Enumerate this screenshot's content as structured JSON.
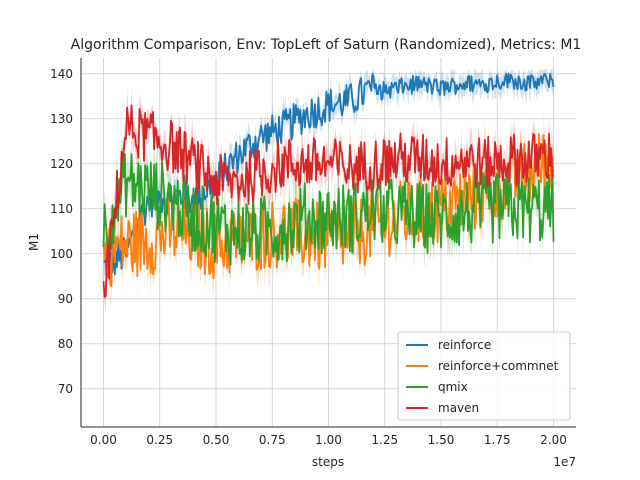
{
  "chart_data": {
    "type": "line",
    "title": "Algorithm Comparison, Env: TopLeft of Saturn (Randomized), Metrics: M1",
    "xlabel": "steps",
    "ylabel": "M1",
    "x_offset_label": "1e7",
    "xlim": [
      -0.1,
      2.1
    ],
    "ylim": [
      61.5,
      143.5
    ],
    "x_scale_note": "x values in units of 1e7 steps",
    "x_ticks": [
      "0.00",
      "0.25",
      "0.50",
      "0.75",
      "1.00",
      "1.25",
      "1.50",
      "1.75",
      "2.00"
    ],
    "y_ticks": [
      "70",
      "80",
      "90",
      "100",
      "110",
      "120",
      "130",
      "140"
    ],
    "grid": true,
    "legend_position": "lower-right",
    "x": [
      0.0,
      0.1,
      0.2,
      0.3,
      0.4,
      0.5,
      0.6,
      0.7,
      0.8,
      0.9,
      1.0,
      1.1,
      1.2,
      1.3,
      1.4,
      1.5,
      1.6,
      1.7,
      1.8,
      1.9,
      2.0
    ],
    "series": [
      {
        "name": "reinforce",
        "color": "#1f77b4",
        "values": [
          97,
          100,
          112,
          113,
          112,
          116,
          122,
          126,
          128,
          131,
          133,
          134,
          137,
          138,
          139,
          138,
          139,
          139,
          140,
          139,
          140
        ],
        "band": 4
      },
      {
        "name": "reinforce+commnet",
        "color": "#ff7f0e",
        "values": [
          100,
          102,
          103,
          105,
          104,
          102,
          103,
          104,
          105,
          104,
          103,
          104,
          106,
          108,
          109,
          110,
          112,
          113,
          116,
          118,
          122
        ],
        "band": 8
      },
      {
        "name": "qmix",
        "color": "#2ca02c",
        "values": [
          105,
          116,
          114,
          112,
          108,
          106,
          105,
          105,
          106,
          108,
          108,
          108,
          110,
          109,
          108,
          108,
          109,
          110,
          110,
          110,
          110
        ],
        "band": 8
      },
      {
        "name": "maven",
        "color": "#d62728",
        "values": [
          90,
          128,
          126,
          124,
          120,
          116,
          116,
          118,
          120,
          120,
          120,
          119,
          120,
          121,
          121,
          120,
          121,
          120,
          121,
          121,
          122
        ],
        "band": 6
      }
    ]
  }
}
